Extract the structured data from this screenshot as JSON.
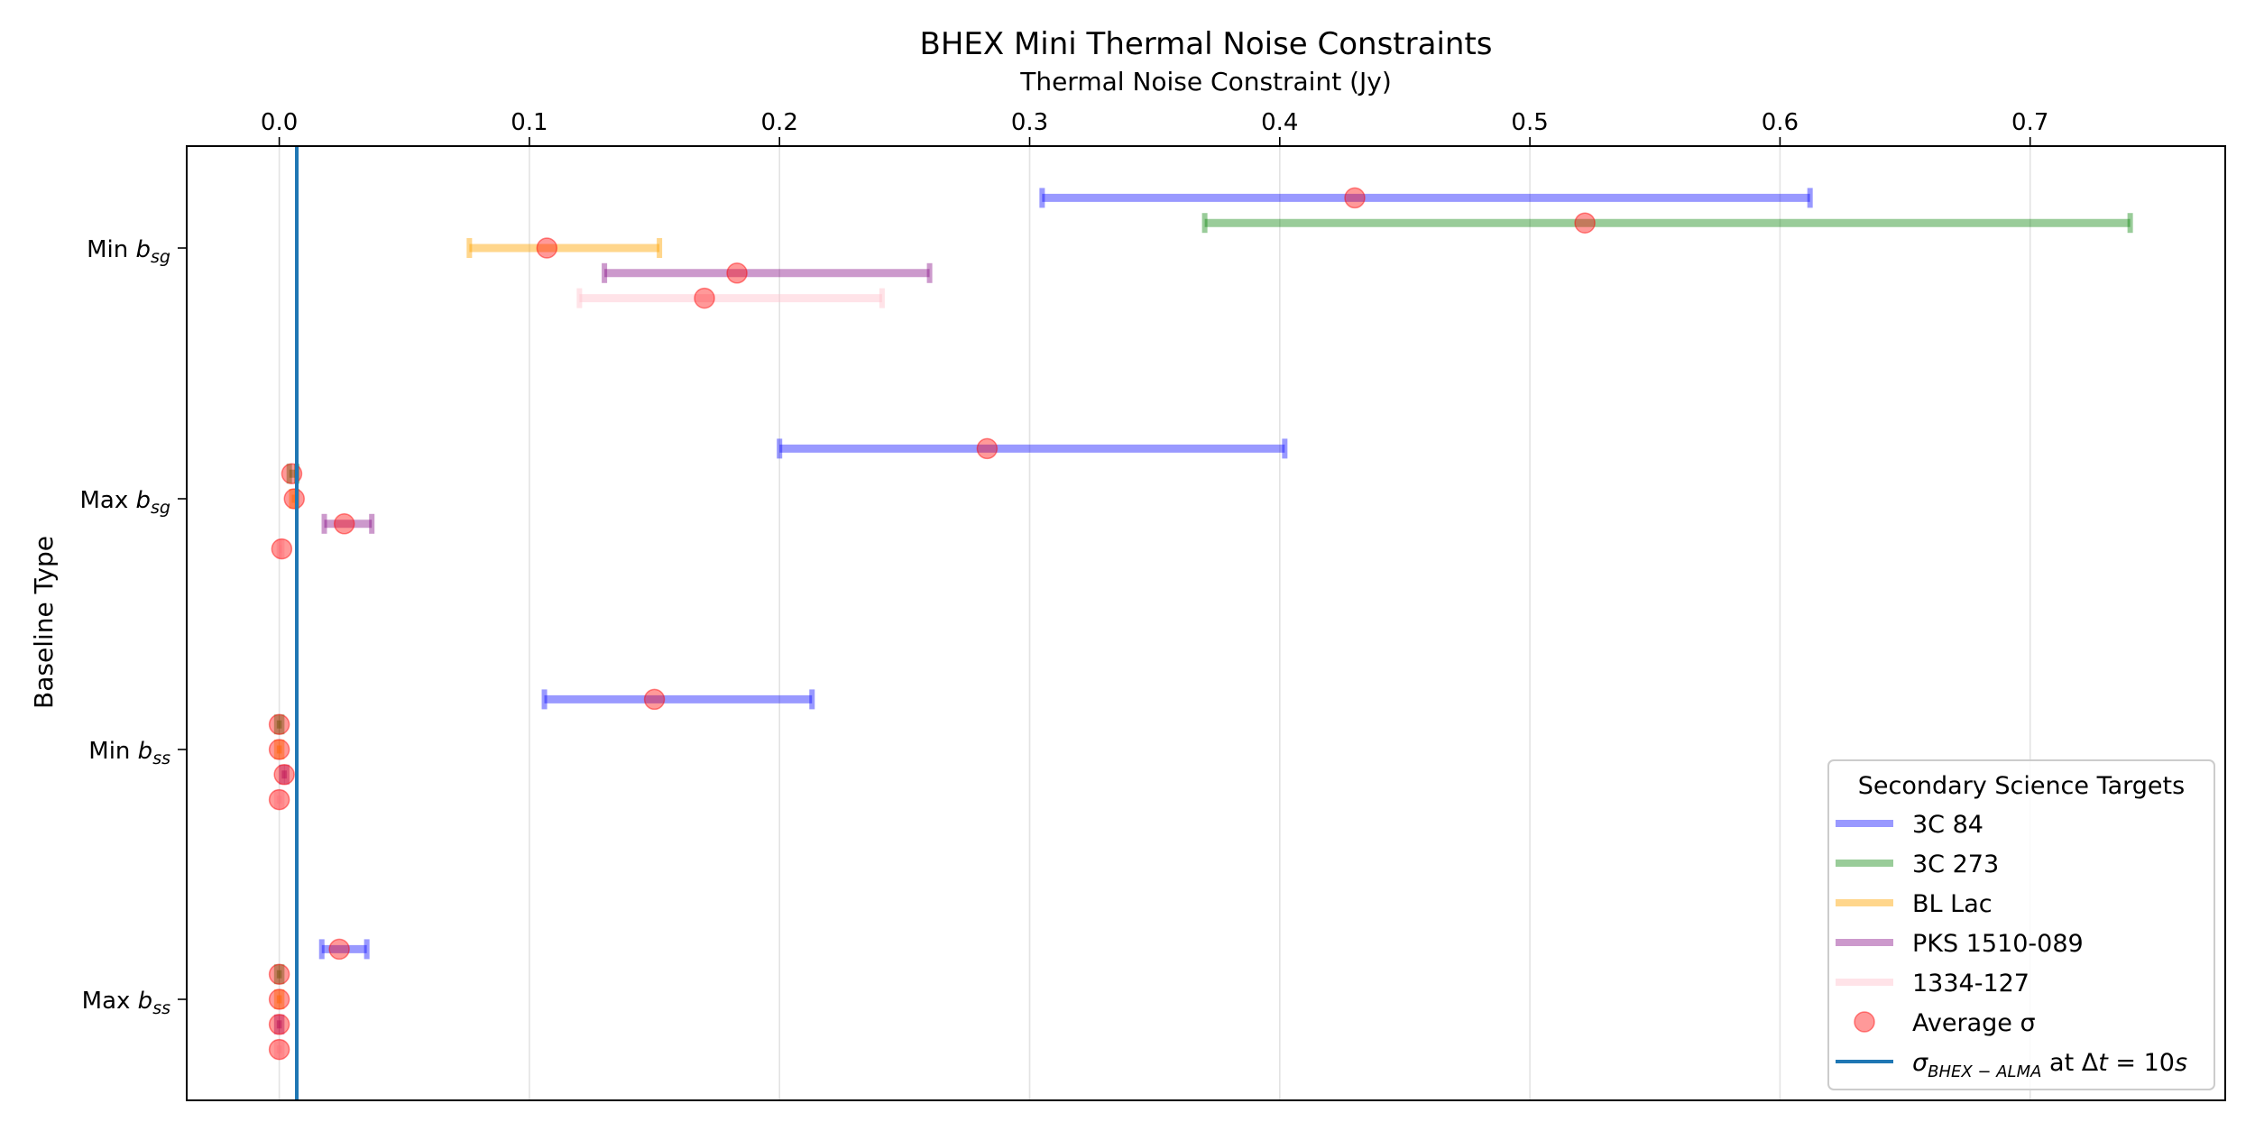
{
  "chart_data": {
    "type": "errorbar",
    "title": "BHEX Mini Thermal Noise Constraints",
    "xlabel": "Thermal Noise Constraint (Jy)",
    "ylabel": "Baseline Type",
    "xaxis_position": "top",
    "xlim": [
      -0.037,
      0.778
    ],
    "xticks": [
      0.0,
      0.1,
      0.2,
      0.3,
      0.4,
      0.5,
      0.6,
      0.7
    ],
    "xtick_labels": [
      "0.0",
      "0.1",
      "0.2",
      "0.3",
      "0.4",
      "0.5",
      "0.6",
      "0.7"
    ],
    "grid": "vertical",
    "categories": [
      {
        "key": "min_bsg",
        "base": "Min ",
        "sub": "sg"
      },
      {
        "key": "max_bsg",
        "base": "Max ",
        "sub": "sg"
      },
      {
        "key": "min_bss",
        "base": "Min ",
        "sub": "ss"
      },
      {
        "key": "max_bss",
        "base": "Max ",
        "sub": "ss"
      }
    ],
    "series": [
      {
        "name": "3C 84",
        "color": "#0000ff",
        "alpha": 0.4,
        "offset": 0.2,
        "points": [
          {
            "cat": "min_bsg",
            "min": 0.305,
            "max": 0.612,
            "avg": 0.43
          },
          {
            "cat": "max_bsg",
            "min": 0.2,
            "max": 0.402,
            "avg": 0.283
          },
          {
            "cat": "min_bss",
            "min": 0.106,
            "max": 0.213,
            "avg": 0.15
          },
          {
            "cat": "max_bss",
            "min": 0.017,
            "max": 0.035,
            "avg": 0.024
          }
        ]
      },
      {
        "name": "3C 273",
        "color": "#008000",
        "alpha": 0.4,
        "offset": 0.1,
        "points": [
          {
            "cat": "min_bsg",
            "min": 0.37,
            "max": 0.74,
            "avg": 0.522
          },
          {
            "cat": "max_bsg",
            "min": 0.004,
            "max": 0.007,
            "avg": 0.005
          },
          {
            "cat": "min_bss",
            "min": -0.001,
            "max": 0.001,
            "avg": 0.0
          },
          {
            "cat": "max_bss",
            "min": -0.001,
            "max": 0.001,
            "avg": 0.0
          }
        ]
      },
      {
        "name": "BL Lac",
        "color": "#ffa500",
        "alpha": 0.45,
        "offset": 0.0,
        "points": [
          {
            "cat": "min_bsg",
            "min": 0.076,
            "max": 0.152,
            "avg": 0.107
          },
          {
            "cat": "max_bsg",
            "min": 0.005,
            "max": 0.007,
            "avg": 0.006
          },
          {
            "cat": "min_bss",
            "min": -0.001,
            "max": 0.001,
            "avg": 0.0
          },
          {
            "cat": "max_bss",
            "min": -0.001,
            "max": 0.001,
            "avg": 0.0
          }
        ]
      },
      {
        "name": "PKS 1510-089",
        "color": "#800080",
        "alpha": 0.4,
        "offset": -0.1,
        "points": [
          {
            "cat": "min_bsg",
            "min": 0.13,
            "max": 0.26,
            "avg": 0.183
          },
          {
            "cat": "max_bsg",
            "min": 0.018,
            "max": 0.037,
            "avg": 0.026
          },
          {
            "cat": "min_bss",
            "min": 0.001,
            "max": 0.003,
            "avg": 0.002
          },
          {
            "cat": "max_bss",
            "min": -0.001,
            "max": 0.001,
            "avg": 0.0
          }
        ]
      },
      {
        "name": "1334-127",
        "color": "#ffc0cb",
        "alpha": 0.45,
        "offset": -0.2,
        "points": [
          {
            "cat": "min_bsg",
            "min": 0.12,
            "max": 0.241,
            "avg": 0.17
          },
          {
            "cat": "max_bsg",
            "min": 0.0,
            "max": 0.001,
            "avg": 0.001
          },
          {
            "cat": "min_bss",
            "min": -0.001,
            "max": 0.001,
            "avg": 0.0
          },
          {
            "cat": "max_bss",
            "min": -0.001,
            "max": 0.001,
            "avg": 0.0
          }
        ]
      }
    ],
    "average_marker": {
      "color": "#ff0000",
      "alpha": 0.4
    },
    "reference_line": {
      "x": 0.007,
      "color": "#1f77b4"
    },
    "legend": {
      "title": "Secondary Science Targets",
      "location": "lower-right",
      "entries": [
        "3C 84",
        "3C 273",
        "BL Lac",
        "PKS 1510-089",
        "1334-127",
        "Average σ"
      ],
      "reference_label": {
        "pre": "σ",
        "sub": "BHEX − ALMA",
        "mid": " at Δ",
        "tvar": "t",
        "post": " = 10",
        "svar": "s"
      }
    }
  }
}
